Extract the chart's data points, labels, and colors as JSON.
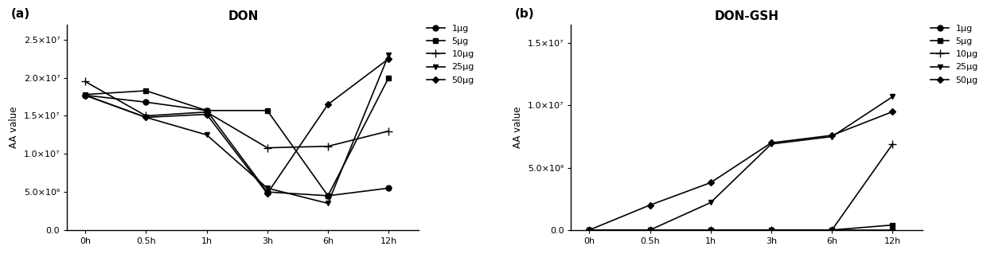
{
  "x_labels": [
    "0h",
    "0.5h",
    "1h",
    "3h",
    "6h",
    "12h"
  ],
  "x_vals": [
    0,
    1,
    2,
    3,
    4,
    5
  ],
  "don": {
    "title": "DON",
    "ylabel": "AA value",
    "ylim": [
      0,
      27000000.0
    ],
    "yticks": [
      0,
      5000000.0,
      10000000.0,
      15000000.0,
      20000000.0,
      25000000.0
    ],
    "ytick_labels": [
      "0.0",
      "5.0×10⁶",
      "1.0×10⁷",
      "1.5×10⁷",
      "2.0×10⁷",
      "2.5×10⁷"
    ],
    "series": {
      "1μg": [
        17700000.0,
        16800000.0,
        15700000.0,
        5000000.0,
        4500000.0,
        5500000.0
      ],
      "5μg": [
        17800000.0,
        18300000.0,
        15700000.0,
        15700000.0,
        4500000.0,
        20000000.0
      ],
      "10μg": [
        19500000.0,
        15000000.0,
        15500000.0,
        10800000.0,
        11000000.0,
        13000000.0
      ],
      "25μg": [
        17700000.0,
        14800000.0,
        12500000.0,
        5500000.0,
        3500000.0,
        23000000.0
      ],
      "50μg": [
        17700000.0,
        14800000.0,
        15200000.0,
        4800000.0,
        16500000.0,
        22500000.0
      ]
    }
  },
  "gsh": {
    "title": "DON-GSH",
    "ylabel": "AA value",
    "ylim": [
      0,
      16500000.0
    ],
    "yticks": [
      0,
      5000000.0,
      10000000.0,
      15000000.0
    ],
    "ytick_labels": [
      "0.0",
      "5.0×10⁶",
      "1.0×10⁷",
      "1.5×10⁷"
    ],
    "series": {
      "1μg": [
        0,
        0,
        0,
        0,
        0,
        0
      ],
      "5μg": [
        0,
        0,
        0,
        0,
        0,
        400000.0
      ],
      "10μg": [
        0,
        0,
        0,
        0,
        0,
        6900000.0
      ],
      "25μg": [
        0,
        0,
        2200000.0,
        6900000.0,
        7500000.0,
        10700000.0
      ],
      "50μg": [
        0,
        2000000.0,
        3800000.0,
        7000000.0,
        7600000.0,
        9500000.0
      ]
    }
  },
  "markers": {
    "1μg": {
      "marker": "o",
      "ms": 5,
      "mfc": "black"
    },
    "5μg": {
      "marker": "s",
      "ms": 5,
      "mfc": "black"
    },
    "10μg": {
      "marker": "+",
      "ms": 7,
      "mfc": "black"
    },
    "25μg": {
      "marker": "v",
      "ms": 5,
      "mfc": "black"
    },
    "50μg": {
      "marker": "D",
      "ms": 4,
      "mfc": "black"
    }
  },
  "color": "#000000",
  "linewidth": 1.2,
  "panel_label_fontsize": 11,
  "title_fontsize": 11,
  "tick_fontsize": 8,
  "legend_fontsize": 8,
  "ylabel_fontsize": 8.5
}
